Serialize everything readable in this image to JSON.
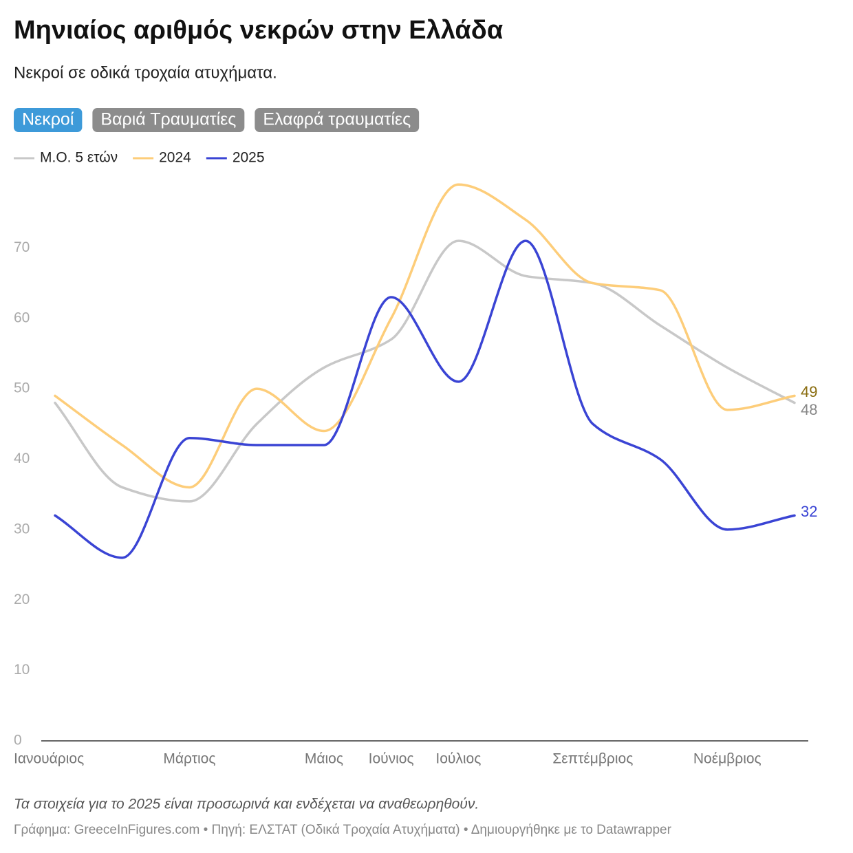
{
  "chart_data": {
    "type": "line",
    "title": "Μηνιαίος αριθμός νεκρών στην Ελλάδα",
    "subtitle": "Νεκροί σε οδικά τροχαία ατυχήματα.",
    "buttons": [
      "Νεκροί",
      "Βαριά Τραυματίες",
      "Ελαφρά τραυματίες"
    ],
    "categories": [
      "Ιανουάριος",
      null,
      "Μάρτιος",
      null,
      "Μάιος",
      "Ιούνιος",
      "Ιούλιος",
      null,
      "Σεπτέμβριος",
      null,
      "Νοέμβριος",
      null
    ],
    "series": [
      {
        "name": "Μ.Ο. 5 ετών",
        "color": "#c8c8c8",
        "label_color": "#888888",
        "values": [
          48,
          36,
          34,
          45,
          53,
          57,
          71,
          66,
          65,
          59,
          53,
          48
        ]
      },
      {
        "name": "2024",
        "color": "#fdcd7a",
        "label_color": "#8a6d10",
        "values": [
          49,
          42,
          36,
          50,
          44,
          60,
          79,
          74,
          65,
          64,
          47,
          49
        ]
      },
      {
        "name": "2025",
        "color": "#3a44d4",
        "label_color": "#3a44d4",
        "values": [
          32,
          26,
          43,
          42,
          42,
          63,
          51,
          71,
          45,
          40,
          30,
          32
        ]
      }
    ],
    "ylim": [
      0,
      80
    ],
    "yticks": [
      0,
      10,
      20,
      30,
      40,
      50,
      60,
      70
    ],
    "grid": false,
    "note": "Τα στοιχεία για το 2025 είναι προσωρινά και ενδέχεται να αναθεωρηθούν.",
    "source": "Γράφημα: GreeceInFigures.com • Πηγή: ΕΛΣΤΑΤ (Οδικά Τροχαία Ατυχήματα) • Δημιουργήθηκε με το Datawrapper"
  }
}
